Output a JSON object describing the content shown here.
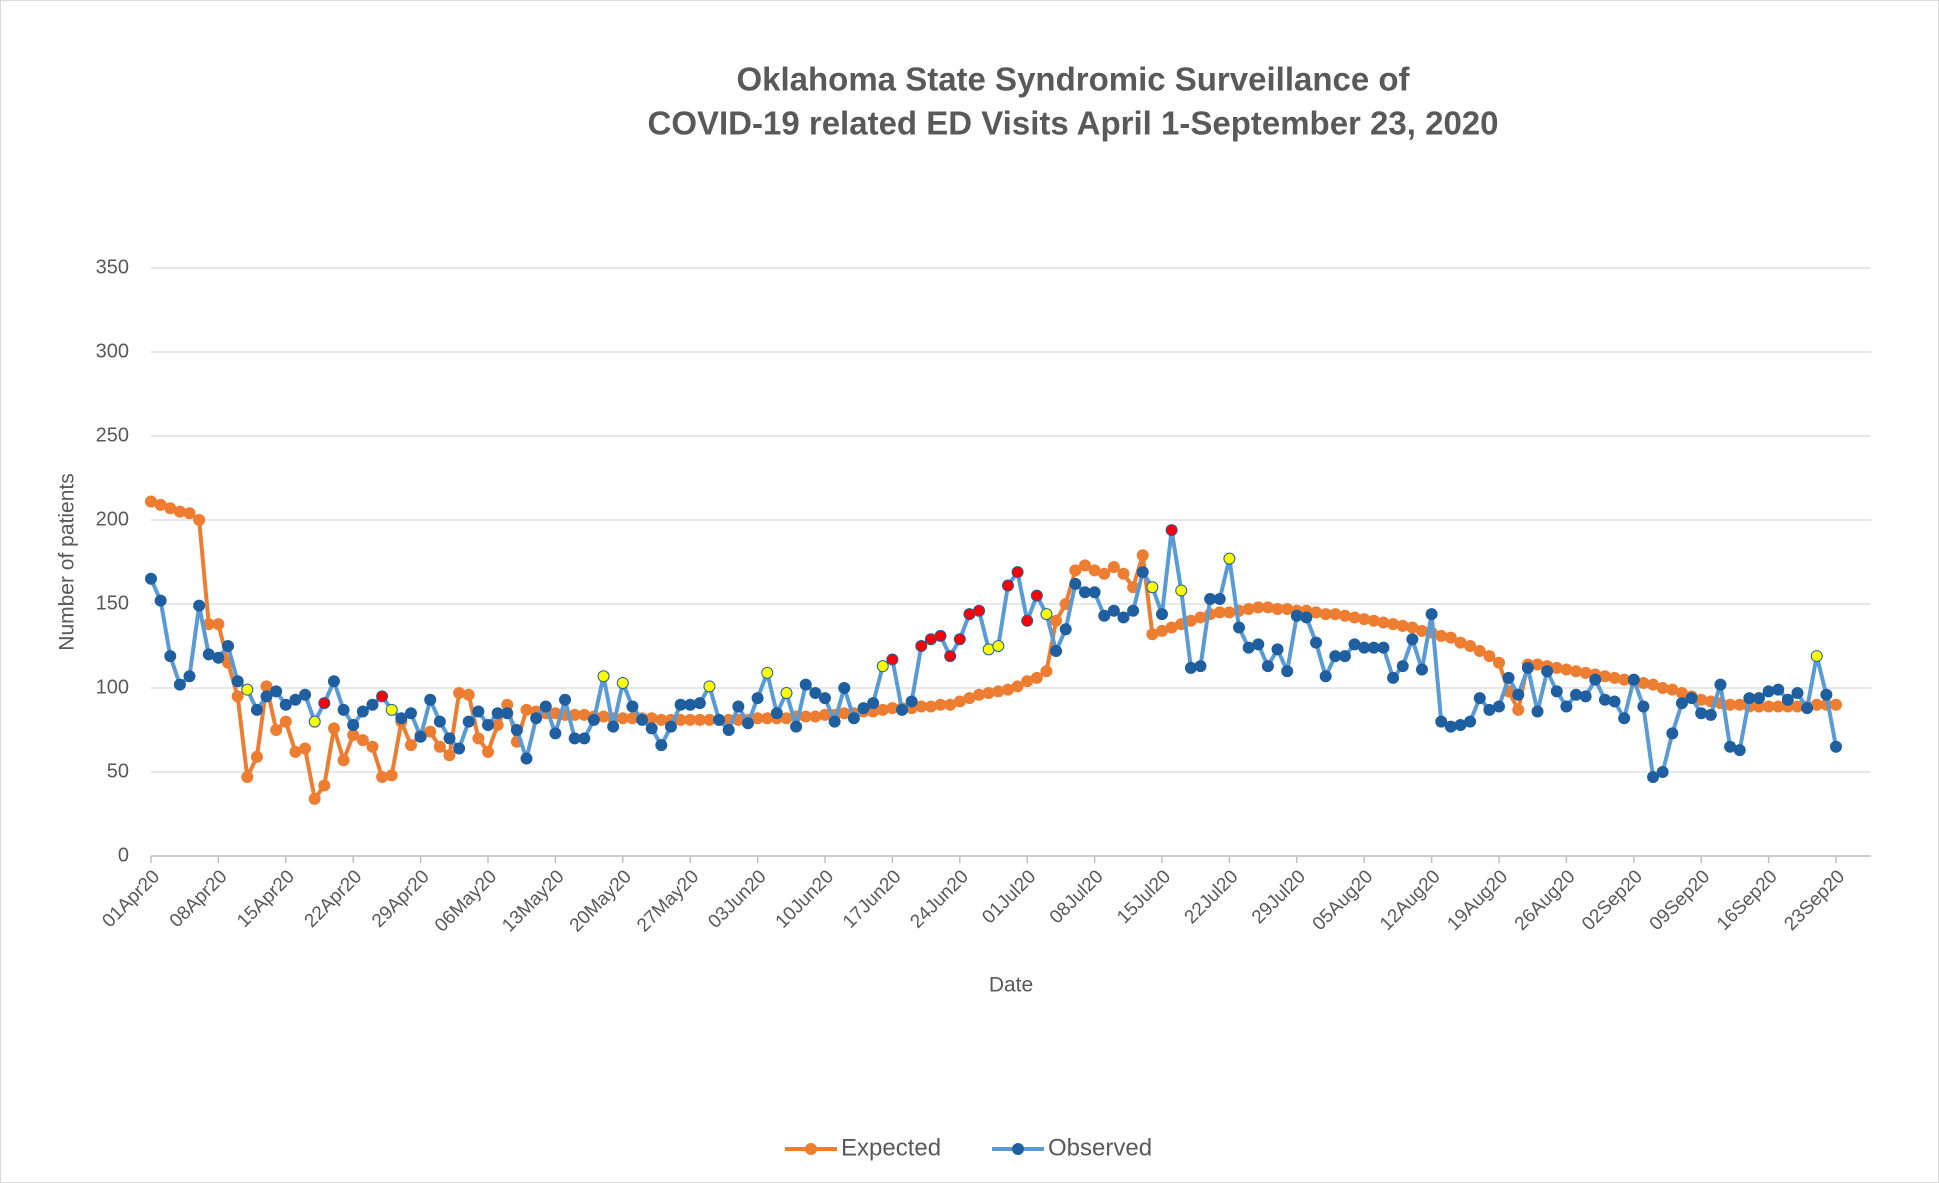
{
  "chart_data": {
    "type": "line",
    "title": [
      "Oklahoma State Syndromic Surveillance of",
      "COVID-19 related ED Visits April 1-September 23, 2020"
    ],
    "xlabel": "Date",
    "ylabel": "Number of patients",
    "ylim": [
      0,
      350
    ],
    "yticks": [
      0,
      50,
      100,
      150,
      200,
      250,
      300,
      350
    ],
    "grid": true,
    "legend": "bottom",
    "categories": [
      "01Apr20",
      null,
      null,
      null,
      null,
      null,
      null,
      "08Apr20",
      null,
      null,
      null,
      null,
      null,
      null,
      "15Apr20",
      null,
      null,
      null,
      null,
      null,
      null,
      "22Apr20",
      null,
      null,
      null,
      null,
      null,
      null,
      "29Apr20",
      null,
      null,
      null,
      null,
      null,
      null,
      "06May20",
      null,
      null,
      null,
      null,
      null,
      null,
      "13May20",
      null,
      null,
      null,
      null,
      null,
      null,
      "20May20",
      null,
      null,
      null,
      null,
      null,
      null,
      "27May20",
      null,
      null,
      null,
      null,
      null,
      null,
      "03Jun20",
      null,
      null,
      null,
      null,
      null,
      null,
      "10Jun20",
      null,
      null,
      null,
      null,
      null,
      null,
      "17Jun20",
      null,
      null,
      null,
      null,
      null,
      null,
      "24Jun20",
      null,
      null,
      null,
      null,
      null,
      null,
      "01Jul20",
      null,
      null,
      null,
      null,
      null,
      null,
      "08Jul20",
      null,
      null,
      null,
      null,
      null,
      null,
      "15Jul20",
      null,
      null,
      null,
      null,
      null,
      null,
      "22Jul20",
      null,
      null,
      null,
      null,
      null,
      null,
      "29Jul20",
      null,
      null,
      null,
      null,
      null,
      null,
      "05Aug20",
      null,
      null,
      null,
      null,
      null,
      null,
      "12Aug20",
      null,
      null,
      null,
      null,
      null,
      null,
      "19Aug20",
      null,
      null,
      null,
      null,
      null,
      null,
      "26Aug20",
      null,
      null,
      null,
      null,
      null,
      null,
      "02Sep20",
      null,
      null,
      null,
      null,
      null,
      null,
      "09Sep20",
      null,
      null,
      null,
      null,
      null,
      null,
      "16Sep20",
      null,
      null,
      null,
      null,
      null,
      null,
      "23Sep20"
    ],
    "series": [
      {
        "name": "Expected",
        "color": "#ed7d31",
        "values": [
          211,
          209,
          207,
          205,
          204,
          200,
          138,
          138,
          115,
          95,
          47,
          59,
          101,
          75,
          80,
          62,
          64,
          34,
          42,
          76,
          57,
          72,
          69,
          65,
          47,
          48,
          80,
          66,
          72,
          74,
          65,
          60,
          97,
          96,
          70,
          62,
          78,
          90,
          68,
          87,
          86,
          85,
          85,
          84,
          84,
          84,
          83,
          83,
          82,
          82,
          82,
          82,
          82,
          81,
          81,
          81,
          81,
          81,
          81,
          81,
          81,
          81,
          81,
          82,
          82,
          82,
          82,
          83,
          83,
          83,
          84,
          84,
          85,
          85,
          86,
          86,
          87,
          88,
          88,
          88,
          89,
          89,
          90,
          90,
          92,
          94,
          96,
          97,
          98,
          99,
          101,
          104,
          106,
          110,
          140,
          150,
          170,
          173,
          170,
          168,
          172,
          168,
          160,
          179,
          132,
          134,
          136,
          138,
          140,
          142,
          144,
          145,
          145,
          146,
          147,
          148,
          148,
          147,
          147,
          146,
          146,
          145,
          144,
          144,
          143,
          142,
          141,
          140,
          139,
          138,
          137,
          136,
          134,
          133,
          131,
          130,
          127,
          125,
          122,
          119,
          115,
          98,
          87,
          114,
          114,
          113,
          112,
          111,
          110,
          109,
          108,
          107,
          106,
          105,
          104,
          103,
          102,
          100,
          99,
          97,
          95,
          93,
          92,
          91,
          90,
          90,
          89,
          89,
          89,
          89,
          89,
          89,
          89,
          90,
          90,
          90
        ]
      },
      {
        "name": "Observed",
        "color": "#5b9bd5",
        "values": [
          165,
          152,
          119,
          102,
          107,
          149,
          120,
          118,
          125,
          104,
          99,
          87,
          95,
          98,
          90,
          93,
          96,
          80,
          91,
          104,
          87,
          78,
          86,
          90,
          95,
          87,
          82,
          85,
          71,
          93,
          80,
          70,
          64,
          80,
          86,
          78,
          85,
          85,
          75,
          58,
          82,
          89,
          73,
          93,
          70,
          70,
          81,
          107,
          77,
          103,
          89,
          81,
          76,
          66,
          77,
          90,
          90,
          91,
          101,
          81,
          75,
          89,
          79,
          94,
          109,
          85,
          97,
          77,
          102,
          97,
          94,
          80,
          100,
          82,
          88,
          91,
          113,
          117,
          87,
          92,
          125,
          129,
          131,
          119,
          129,
          144,
          146,
          123,
          125,
          161,
          169,
          140,
          155,
          144,
          122,
          135,
          162,
          157,
          157,
          143,
          146,
          142,
          146,
          169,
          160,
          144,
          194,
          158,
          112,
          113,
          153,
          153,
          177,
          136,
          124,
          126,
          113,
          123,
          110,
          143,
          142,
          127,
          107,
          119,
          119,
          126,
          124,
          124,
          124,
          106,
          113,
          129,
          111,
          144,
          80,
          77,
          78,
          80,
          94,
          87,
          89,
          106,
          96,
          112,
          86,
          110,
          98,
          89,
          96,
          95,
          105,
          93,
          92,
          82,
          105,
          89,
          47,
          50,
          73,
          91,
          94,
          85,
          84,
          102,
          65,
          63,
          94,
          94,
          98,
          99,
          93,
          97,
          88,
          119,
          96,
          65
        ],
        "marker_colors": [
          "#1f5fa0",
          "#1f5fa0",
          "#1f5fa0",
          "#1f5fa0",
          "#1f5fa0",
          "#1f5fa0",
          "#1f5fa0",
          "#1f5fa0",
          "#1f5fa0",
          "#1f5fa0",
          "#ffff00",
          "#1f5fa0",
          "#1f5fa0",
          "#1f5fa0",
          "#1f5fa0",
          "#1f5fa0",
          "#1f5fa0",
          "#ffff00",
          "#ff0000",
          "#1f5fa0",
          "#1f5fa0",
          "#1f5fa0",
          "#1f5fa0",
          "#1f5fa0",
          "#ff0000",
          "#ffff00",
          "#1f5fa0",
          "#1f5fa0",
          "#1f5fa0",
          "#1f5fa0",
          "#1f5fa0",
          "#1f5fa0",
          "#1f5fa0",
          "#1f5fa0",
          "#1f5fa0",
          "#1f5fa0",
          "#1f5fa0",
          "#1f5fa0",
          "#1f5fa0",
          "#1f5fa0",
          "#1f5fa0",
          "#1f5fa0",
          "#1f5fa0",
          "#1f5fa0",
          "#1f5fa0",
          "#1f5fa0",
          "#1f5fa0",
          "#ffff00",
          "#1f5fa0",
          "#ffff00",
          "#1f5fa0",
          "#1f5fa0",
          "#1f5fa0",
          "#1f5fa0",
          "#1f5fa0",
          "#1f5fa0",
          "#1f5fa0",
          "#1f5fa0",
          "#ffff00",
          "#1f5fa0",
          "#1f5fa0",
          "#1f5fa0",
          "#1f5fa0",
          "#1f5fa0",
          "#ffff00",
          "#1f5fa0",
          "#ffff00",
          "#1f5fa0",
          "#1f5fa0",
          "#1f5fa0",
          "#1f5fa0",
          "#1f5fa0",
          "#1f5fa0",
          "#1f5fa0",
          "#1f5fa0",
          "#1f5fa0",
          "#ffff00",
          "#ff0000",
          "#1f5fa0",
          "#1f5fa0",
          "#ff0000",
          "#ff0000",
          "#ff0000",
          "#ff0000",
          "#ff0000",
          "#ff0000",
          "#ff0000",
          "#ffff00",
          "#ffff00",
          "#ff0000",
          "#ff0000",
          "#ff0000",
          "#ff0000",
          "#ffff00",
          "#1f5fa0",
          "#1f5fa0",
          "#1f5fa0",
          "#1f5fa0",
          "#1f5fa0",
          "#1f5fa0",
          "#1f5fa0",
          "#1f5fa0",
          "#1f5fa0",
          "#1f5fa0",
          "#ffff00",
          "#1f5fa0",
          "#ff0000",
          "#ffff00",
          "#1f5fa0",
          "#1f5fa0",
          "#1f5fa0",
          "#1f5fa0",
          "#ffff00",
          "#1f5fa0",
          "#1f5fa0",
          "#1f5fa0",
          "#1f5fa0",
          "#1f5fa0",
          "#1f5fa0",
          "#1f5fa0",
          "#1f5fa0",
          "#1f5fa0",
          "#1f5fa0",
          "#1f5fa0",
          "#1f5fa0",
          "#1f5fa0",
          "#1f5fa0",
          "#1f5fa0",
          "#1f5fa0",
          "#1f5fa0",
          "#1f5fa0",
          "#1f5fa0",
          "#1f5fa0",
          "#1f5fa0",
          "#1f5fa0",
          "#1f5fa0",
          "#1f5fa0",
          "#1f5fa0",
          "#1f5fa0",
          "#1f5fa0",
          "#1f5fa0",
          "#1f5fa0",
          "#1f5fa0",
          "#1f5fa0",
          "#1f5fa0",
          "#1f5fa0",
          "#1f5fa0",
          "#1f5fa0",
          "#1f5fa0",
          "#1f5fa0",
          "#1f5fa0",
          "#1f5fa0",
          "#1f5fa0",
          "#1f5fa0",
          "#1f5fa0",
          "#1f5fa0",
          "#1f5fa0",
          "#1f5fa0",
          "#1f5fa0",
          "#1f5fa0",
          "#1f5fa0",
          "#1f5fa0",
          "#1f5fa0",
          "#1f5fa0",
          "#1f5fa0",
          "#1f5fa0",
          "#1f5fa0",
          "#1f5fa0",
          "#1f5fa0",
          "#1f5fa0",
          "#1f5fa0",
          "#1f5fa0",
          "#1f5fa0",
          "#ffff00",
          "#1f5fa0",
          "#1f5fa0"
        ]
      }
    ]
  }
}
